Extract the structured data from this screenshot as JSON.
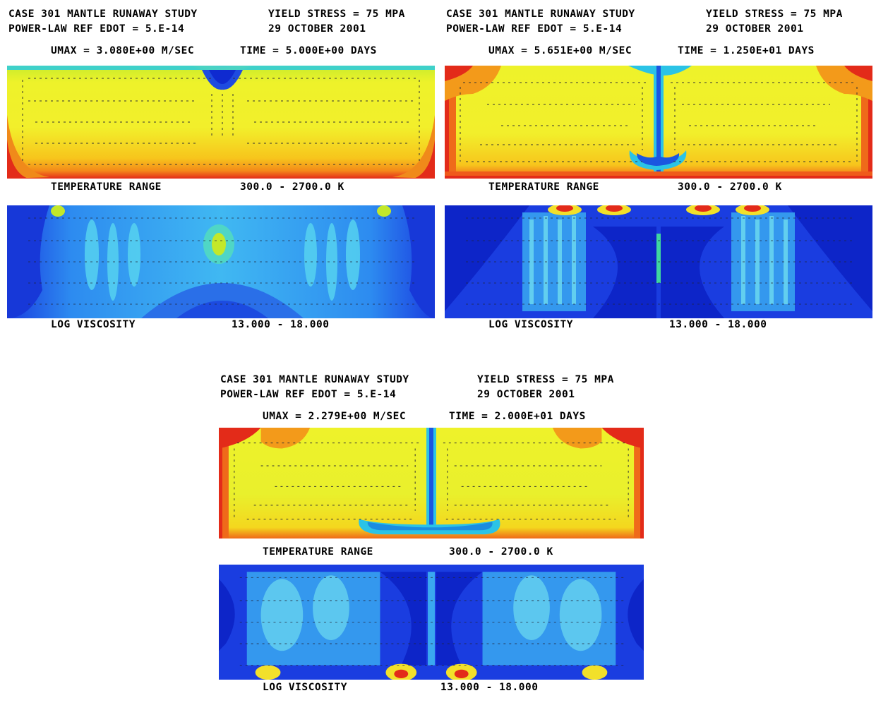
{
  "panels": [
    {
      "title": "CASE 301 MANTLE RUNAWAY STUDY",
      "subtitle": "POWER-LAW REF EDOT = 5.E-14",
      "yield": "YIELD STRESS = 75 MPA",
      "date": "29 OCTOBER 2001",
      "umax": "UMAX = 3.080E+00 M/SEC",
      "time": "TIME = 5.000E+00 DAYS",
      "temp_label": "TEMPERATURE RANGE",
      "temp_range": "300.0 -  2700.0 K",
      "visc_label": "LOG VISCOSITY",
      "visc_range": "13.000 -  18.000"
    },
    {
      "title": "CASE 301 MANTLE RUNAWAY STUDY",
      "subtitle": "POWER-LAW REF EDOT = 5.E-14",
      "yield": "YIELD STRESS = 75 MPA",
      "date": "29 OCTOBER 2001",
      "umax": "UMAX = 5.651E+00 M/SEC",
      "time": "TIME = 1.250E+01 DAYS",
      "temp_label": "TEMPERATURE RANGE",
      "temp_range": "300.0 -  2700.0 K",
      "visc_label": "LOG VISCOSITY",
      "visc_range": "13.000 -  18.000"
    },
    {
      "title": "CASE 301 MANTLE RUNAWAY STUDY",
      "subtitle": "POWER-LAW REF EDOT = 5.E-14",
      "yield": "YIELD STRESS = 75 MPA",
      "date": "29 OCTOBER 2001",
      "umax": "UMAX = 2.279E+00 M/SEC",
      "time": "TIME = 2.000E+01 DAYS",
      "temp_label": "TEMPERATURE RANGE",
      "temp_range": "300.0 -  2700.0 K",
      "visc_label": "LOG VISCOSITY",
      "visc_range": "13.000 -  18.000"
    }
  ],
  "colors": {
    "hot": "#e8261a",
    "orange": "#f7a11a",
    "yellow": "#f4ef2e",
    "green_yellow": "#c8ec2a",
    "cyan": "#2bd7e8",
    "light_blue": "#31a5f0",
    "blue": "#1a46e6",
    "deep_blue": "#0c22c8"
  }
}
